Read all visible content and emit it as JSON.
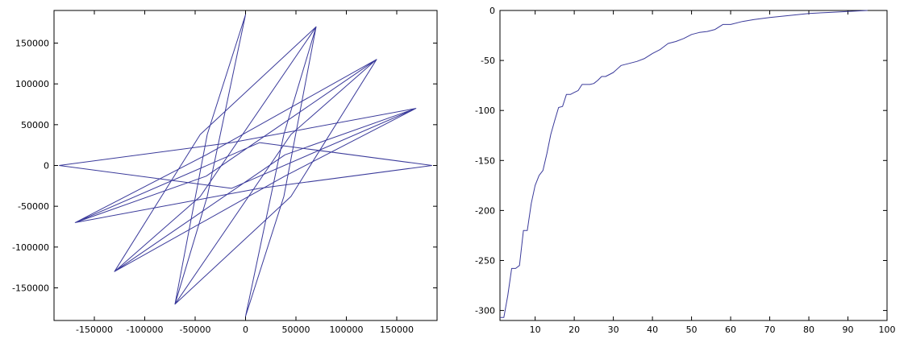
{
  "chart_data": [
    {
      "type": "line",
      "title": "",
      "xlabel": "",
      "ylabel": "",
      "xlim": [
        -190000,
        190000
      ],
      "ylim": [
        -190000,
        190000
      ],
      "xticks": [
        -150000,
        -100000,
        -50000,
        0,
        50000,
        100000,
        150000
      ],
      "yticks": [
        -150000,
        -100000,
        -50000,
        0,
        50000,
        100000,
        150000
      ],
      "xtick_labels": [
        "-150000",
        "-100000",
        "-50000",
        "0",
        "50000",
        "100000",
        "150000"
      ],
      "ytick_labels": [
        "-150000",
        "-100000",
        "-50000",
        "0",
        "50000",
        "100000",
        "150000"
      ],
      "grid": false,
      "legend": "none",
      "line_color": "#3a3a9a",
      "series": [
        {
          "x": [
            185000,
            14000,
            -169000,
            -39000,
            130000,
            45000,
            -70000,
            -38000,
            0,
            -38000,
            -70000,
            45000,
            130000,
            -39000,
            -169000,
            14000,
            185000
          ],
          "y": [
            0,
            -28000,
            -70000,
            13000,
            130000,
            38000,
            -170000,
            -38000,
            185000,
            38000,
            -170000,
            -38000,
            130000,
            -13000,
            -70000,
            28000,
            0
          ]
        },
        {
          "x": [
            -185000,
            -14000,
            169000,
            39000,
            -130000,
            -45000,
            70000,
            38000,
            0,
            38000,
            70000,
            -45000,
            -130000,
            39000,
            169000,
            -14000,
            -185000
          ],
          "y": [
            0,
            28000,
            70000,
            -13000,
            -130000,
            -38000,
            170000,
            38000,
            -185000,
            -38000,
            170000,
            38000,
            -130000,
            13000,
            70000,
            -28000,
            0
          ]
        }
      ]
    },
    {
      "type": "line",
      "title": "",
      "xlabel": "",
      "ylabel": "",
      "xlim": [
        1,
        100
      ],
      "ylim": [
        -310,
        0
      ],
      "xticks": [
        10,
        20,
        30,
        40,
        50,
        60,
        70,
        80,
        90,
        100
      ],
      "yticks": [
        -300,
        -250,
        -200,
        -150,
        -100,
        -50,
        0
      ],
      "xtick_labels": [
        "10",
        "20",
        "30",
        "40",
        "50",
        "60",
        "70",
        "80",
        "90",
        "100"
      ],
      "ytick_labels": [
        "-300",
        "-250",
        "-200",
        "-150",
        "-100",
        "-50",
        "0"
      ],
      "grid": false,
      "legend": "none",
      "line_color": "#3a3a9a",
      "series": [
        {
          "x": [
            1,
            2,
            3,
            4,
            5,
            6,
            7,
            8,
            9,
            10,
            11,
            12,
            13,
            14,
            15,
            16,
            17,
            18,
            19,
            20,
            21,
            22,
            23,
            24,
            25,
            26,
            27,
            28,
            29,
            30,
            32,
            34,
            36,
            38,
            40,
            42,
            44,
            46,
            48,
            50,
            52,
            54,
            56,
            58,
            60,
            63,
            66,
            70,
            75,
            80,
            85,
            90,
            95
          ],
          "y": [
            -307,
            -307,
            -285,
            -258,
            -258,
            -255,
            -220,
            -220,
            -193,
            -175,
            -165,
            -160,
            -143,
            -124,
            -110,
            -97,
            -96,
            -84,
            -84,
            -82,
            -80,
            -74,
            -74,
            -74,
            -73,
            -70,
            -66,
            -66,
            -64,
            -62,
            -55,
            -53,
            -51,
            -48,
            -43,
            -39,
            -33,
            -31,
            -28,
            -24,
            -22,
            -21,
            -19,
            -14,
            -14,
            -11,
            -9,
            -7,
            -5,
            -3,
            -2,
            -1,
            0
          ]
        }
      ]
    }
  ]
}
